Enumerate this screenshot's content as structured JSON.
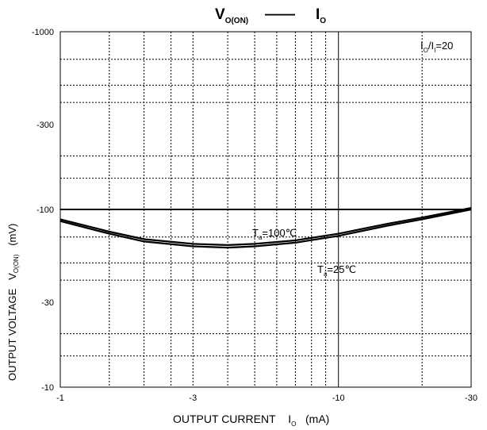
{
  "chart_data": {
    "type": "line",
    "title": {
      "y_symbol": "V",
      "y_subscript": "O(ON)",
      "separator": "——",
      "x_symbol": "I",
      "x_subscript": "O"
    },
    "ylabel": {
      "text": "OUTPUT VOLTAGE",
      "symbol": "V",
      "subscript": "O(ON)",
      "unit": "(mV)"
    },
    "xlabel": {
      "text": "OUTPUT CURRENT",
      "symbol": "I",
      "subscript": "O",
      "unit": "(mA)"
    },
    "x_scale": "log",
    "y_scale": "log",
    "x_axis_reversed": true,
    "y_axis_reversed": true,
    "xlim": [
      -1,
      -30
    ],
    "ylim": [
      -10,
      -1000
    ],
    "x_ticks": [
      "-1",
      "-3",
      "-10",
      "-30"
    ],
    "y_ticks": [
      "-1000",
      "-300",
      "-100",
      "-30",
      "-10"
    ],
    "grid": true,
    "annotations": [
      {
        "text": "I",
        "sub": "O",
        "text2": "/I",
        "sub2": "I",
        "text3": "=20"
      },
      {
        "text": "T",
        "sub": "a",
        "text2": "=100℃"
      },
      {
        "text": "T",
        "sub": "a",
        "text2": "=25℃"
      }
    ],
    "series": [
      {
        "x": [
          -1,
          -1.5,
          -2,
          -3,
          -4,
          -5,
          -7,
          -10,
          -15,
          -20,
          -30
        ],
        "y": [
          -88,
          -75,
          -68,
          -64,
          -63,
          -64,
          -67,
          -73,
          -83,
          -90,
          -102
        ]
      },
      {
        "x": [
          -1,
          -1.5,
          -2,
          -3,
          -4,
          -5,
          -7,
          -10,
          -15,
          -20,
          -30
        ],
        "y": [
          -86,
          -73,
          -66,
          -62,
          -61,
          -62,
          -65,
          -71,
          -81,
          -88,
          -100
        ]
      }
    ],
    "colors": {
      "line": "#000000",
      "grid": "#000000",
      "background": "#ffffff"
    }
  }
}
